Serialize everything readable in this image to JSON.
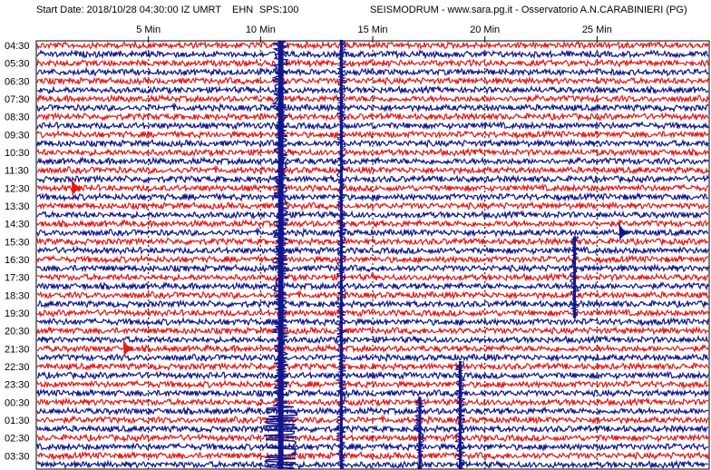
{
  "header": {
    "start_date": "Start Date: 2018/10/28 04:30:00 IZ UMRT",
    "channel": "EHN",
    "sps": "SPS:100",
    "station": "SEISMODRUM - www.sara.pg.it - Osservatorio A.N.CARABINIERI (PG)"
  },
  "chart_data": {
    "type": "line",
    "title": "",
    "x_ticks": [
      {
        "value": 5,
        "label": "5 Min"
      },
      {
        "value": 10,
        "label": "10 Min"
      },
      {
        "value": 15,
        "label": "15 Min"
      },
      {
        "value": 20,
        "label": "20 Min"
      },
      {
        "value": 25,
        "label": "25 Min"
      }
    ],
    "xlim": [
      0,
      30
    ],
    "y_labels": [
      "04:30",
      "05:30",
      "06:30",
      "07:30",
      "08:30",
      "09:30",
      "10:30",
      "11:30",
      "12:30",
      "13:30",
      "14:30",
      "15:30",
      "16:30",
      "17:30",
      "18:30",
      "19:30",
      "20:30",
      "21:30",
      "22:30",
      "23:30",
      "00:30",
      "01:30",
      "02:30",
      "03:30"
    ],
    "traces_per_hour": 2,
    "colors": {
      "trace_a": "#e21a1a",
      "trace_b": "#12168c",
      "grid": "#000000"
    },
    "events": [
      {
        "minute": 10.9,
        "row_start": 0,
        "row_end": 47,
        "strength": "large"
      },
      {
        "minute": 13.6,
        "row_start": 0,
        "row_end": 47,
        "strength": "medium"
      },
      {
        "minute": 17.1,
        "row_start": 40,
        "row_end": 47,
        "strength": "medium"
      },
      {
        "minute": 18.9,
        "row_start": 36,
        "row_end": 47,
        "strength": "medium"
      },
      {
        "minute": 24.0,
        "row_start": 22,
        "row_end": 30,
        "strength": "medium"
      },
      {
        "minute": 1.6,
        "row_start": 16,
        "row_end": 16,
        "strength": "small"
      },
      {
        "minute": 26.0,
        "row_start": 21,
        "row_end": 21,
        "strength": "small"
      },
      {
        "minute": 3.9,
        "row_start": 34,
        "row_end": 34,
        "strength": "small"
      }
    ]
  }
}
